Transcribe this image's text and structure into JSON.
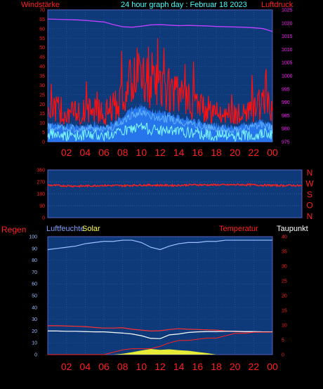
{
  "header": {
    "left_label": "Windstärke",
    "title": "24 hour graph day : Februar 18 2023",
    "right_label": "Luftdruck"
  },
  "colors": {
    "background": "#000000",
    "plot_bg": "#0f3a7a",
    "frame": "#5a5ab0",
    "axis_red": "#ff2020",
    "axis_magenta": "#ff20ff",
    "wind_gust": "#ff1010",
    "wind_avg": "#2b80ff",
    "wind_light": "#7cf8ff",
    "pressure": "#c040ff",
    "direction": "#ff2020",
    "humidity": "#9fc0ff",
    "solar": "#ffff30",
    "temperature": "#ff3030",
    "dewpoint": "#ffffff",
    "rain": "#ff2020"
  },
  "panel3_labels": {
    "rain": "Regen",
    "humidity": "Luftfeuchte",
    "solar": "Solar",
    "temperature": "Temperatur",
    "dewpoint": "Taupunkt"
  },
  "chart_data": [
    {
      "type": "line",
      "title": "24 hour graph day : Februar 18 2023",
      "ylabel": "Windstärke",
      "y2label": "Luftdruck",
      "ylim": [
        0,
        70
      ],
      "y2lim": [
        975,
        1025
      ],
      "yticks": [
        "0",
        "5",
        "10",
        "15",
        "20",
        "25",
        "30",
        "35",
        "40",
        "45",
        "50",
        "55",
        "60",
        "65",
        "70"
      ],
      "y2ticks": [
        "975",
        "980",
        "985",
        "990",
        "995",
        "1000",
        "1005",
        "1010",
        "1015",
        "1020",
        "1025"
      ],
      "xticks": [
        "02",
        "04",
        "06",
        "08",
        "10",
        "12",
        "14",
        "16",
        "18",
        "20",
        "22",
        "00"
      ],
      "x": [
        0,
        1,
        2,
        3,
        4,
        5,
        6,
        7,
        8,
        9,
        10,
        11,
        12,
        13,
        14,
        15,
        16,
        17,
        18,
        19,
        20,
        21,
        22,
        23,
        24
      ],
      "series": [
        {
          "name": "Windstärke",
          "values": [
            18,
            17,
            16,
            15,
            16,
            17,
            15,
            18,
            24,
            32,
            35,
            30,
            28,
            27,
            24,
            22,
            20,
            17,
            16,
            15,
            14,
            16,
            18,
            20,
            17
          ]
        },
        {
          "name": "Luftdruck",
          "values": [
            1021.5,
            1021.4,
            1021.3,
            1021.2,
            1021.0,
            1020.7,
            1020.4,
            1019.4,
            1018.6,
            1018.4,
            1018.8,
            1019.3,
            1019.4,
            1019.2,
            1019.0,
            1019.1,
            1019.0,
            1018.9,
            1018.7,
            1018.6,
            1018.5,
            1018.4,
            1018.2,
            1017.9,
            1016.8
          ]
        }
      ],
      "grid": true
    },
    {
      "type": "scatter",
      "ylim": [
        0,
        360
      ],
      "yticks": [
        "0",
        "90",
        "180",
        "270",
        "360"
      ],
      "right_labels": [
        "N",
        "W",
        "S",
        "O",
        "N"
      ],
      "series": [
        {
          "values": [
            245,
            242,
            240,
            238,
            240,
            243,
            242,
            241,
            244,
            246,
            245,
            244,
            243,
            246,
            248,
            247,
            248,
            247,
            249,
            248,
            246,
            244,
            242,
            244,
            240
          ]
        }
      ],
      "grid": true
    },
    {
      "type": "line",
      "ylim": [
        0,
        100
      ],
      "y2lim": [
        0,
        40
      ],
      "yticks": [
        "0",
        "10",
        "20",
        "30",
        "40",
        "50",
        "60",
        "70",
        "80",
        "90",
        "100"
      ],
      "y2ticks": [
        "0",
        "5",
        "10",
        "15",
        "20",
        "25",
        "30",
        "35",
        "40"
      ],
      "xticks": [
        "02",
        "04",
        "06",
        "08",
        "10",
        "12",
        "14",
        "16",
        "18",
        "20",
        "22",
        "00"
      ],
      "series": [
        {
          "name": "Luftfeuchte",
          "values": [
            89,
            90,
            91,
            92,
            94,
            95,
            96,
            96,
            97,
            97,
            95,
            91,
            89,
            92,
            94,
            95,
            95,
            96,
            96,
            97,
            97,
            97,
            97,
            97,
            97
          ]
        },
        {
          "name": "Temperatur",
          "values": [
            9.8,
            9.8,
            9.7,
            9.6,
            9.5,
            9.2,
            9.0,
            9.0,
            9.1,
            8.6,
            8.3,
            8.0,
            8.1,
            8.5,
            8.8,
            8.6,
            8.5,
            8.4,
            8.3,
            8.0,
            7.8,
            7.7,
            7.7,
            7.7,
            7.7
          ]
        },
        {
          "name": "Taupunkt",
          "values": [
            8.0,
            8.0,
            7.9,
            7.9,
            7.8,
            7.7,
            7.7,
            7.5,
            7.3,
            7.0,
            6.4,
            5.5,
            5.4,
            6.7,
            7.0,
            7.5,
            7.7,
            7.8,
            7.8,
            7.9,
            7.9,
            7.8,
            7.8,
            7.7,
            7.7
          ]
        },
        {
          "name": "Solar",
          "values": [
            0,
            0,
            0,
            0,
            0,
            0,
            0,
            0,
            0.3,
            0.8,
            1.4,
            1.9,
            1.6,
            1.8,
            1.5,
            1.3,
            0.9,
            0.5,
            0,
            0,
            0,
            0,
            0,
            0,
            0
          ]
        },
        {
          "name": "Regen",
          "values": [
            0,
            0,
            0,
            0,
            0,
            0,
            0,
            2,
            4,
            5,
            5,
            5,
            7,
            10,
            12,
            12,
            13,
            14,
            14,
            16,
            18,
            18,
            19,
            19,
            19
          ]
        }
      ],
      "grid": true
    }
  ]
}
